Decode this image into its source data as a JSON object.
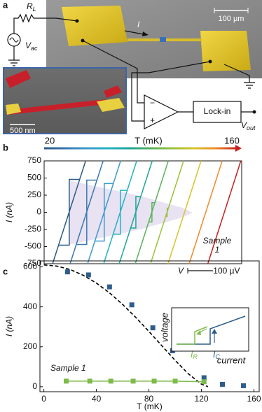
{
  "panel_a": {
    "label": "a",
    "r_l": {
      "base": "R",
      "sub": "L"
    },
    "v_ac": {
      "base": "V",
      "sub": "ac"
    },
    "current": "I",
    "scale_um": "100 µm",
    "scale_nm": "500 nm",
    "minus": "−",
    "plus": "+",
    "lockin": "Lock-in",
    "v_out": {
      "base": "V",
      "sub": "out"
    }
  },
  "chart_data": [
    {
      "type": "line",
      "panel_label": "b",
      "ylabel": "I (nA)",
      "ylim": [
        -750,
        750
      ],
      "yticks": [
        -750,
        -500,
        -250,
        0,
        250,
        500,
        750
      ],
      "xlim": [
        0,
        700
      ],
      "xlabel": "V",
      "scalebar": {
        "value": 100,
        "label": "100 µV"
      },
      "colorbar": {
        "label": "T (mK)",
        "min": 20,
        "max": 160
      },
      "annotation": [
        "Sample",
        "1"
      ],
      "series": [
        {
          "color": "#2c5a86",
          "x": [
            30,
            147,
            null,
            51,
            89,
            89,
            126
          ],
          "values": [
            -750,
            750,
            null,
            -480,
            -480,
            480,
            480
          ]
        },
        {
          "color": "#3a78b0",
          "x": [
            92,
            209,
            null,
            114,
            151,
            151,
            187
          ],
          "values": [
            -750,
            750,
            null,
            -470,
            -470,
            470,
            470
          ]
        },
        {
          "color": "#3f9bd0",
          "x": [
            154,
            271,
            null,
            180,
            213,
            213,
            245
          ],
          "values": [
            -750,
            750,
            null,
            -420,
            -420,
            420,
            420
          ]
        },
        {
          "color": "#24b2c4",
          "x": [
            211,
            328,
            null,
            245,
            270,
            270,
            294
          ],
          "values": [
            -750,
            750,
            null,
            -320,
            -320,
            320,
            320
          ]
        },
        {
          "color": "#1fa596",
          "x": [
            266,
            383,
            null,
            307,
            325,
            325,
            342
          ],
          "values": [
            -750,
            750,
            null,
            -230,
            -230,
            230,
            230
          ]
        },
        {
          "color": "#5ab25a",
          "x": [
            323,
            440,
            null,
            371,
            382,
            382,
            392
          ],
          "values": [
            -750,
            750,
            null,
            -140,
            -140,
            140,
            140
          ]
        },
        {
          "color": "#9cc23c",
          "x": [
            377,
            494,
            null,
            431,
            436,
            436,
            440
          ],
          "values": [
            -750,
            750,
            null,
            -60,
            -60,
            60,
            60
          ]
        },
        {
          "color": "#d8c42a",
          "x": [
            439,
            556
          ],
          "values": [
            -750,
            750
          ]
        },
        {
          "color": "#f08a28",
          "x": [
            514,
            631
          ],
          "values": [
            -750,
            750
          ]
        },
        {
          "color": "#c8201e",
          "x": [
            580,
            697
          ],
          "values": [
            -750,
            750
          ]
        }
      ]
    },
    {
      "type": "line",
      "panel_label": "c",
      "ylabel": "I (nA)",
      "xlabel": "T (mK)",
      "ylim": [
        -25,
        630
      ],
      "yticks": [
        0,
        200,
        400,
        600
      ],
      "xlim": [
        -3,
        164
      ],
      "xticks": [
        0,
        40,
        80,
        120,
        160
      ],
      "annotation": [
        "Sample 1"
      ],
      "series": [
        {
          "color": "#000000",
          "dashed": true,
          "marker": false,
          "line": true,
          "x": [
            0,
            10,
            20,
            30,
            40,
            50,
            60,
            70,
            80,
            90,
            100,
            110,
            120,
            125
          ],
          "values": [
            610,
            604,
            587,
            558,
            519,
            470,
            412,
            347,
            277,
            204,
            132,
            65,
            13,
            0
          ]
        },
        {
          "color": "#2f5d8c",
          "marker": true,
          "line": false,
          "x": [
            18,
            34,
            50,
            67,
            83,
            98,
            122,
            136,
            152
          ],
          "values": [
            575,
            560,
            500,
            410,
            295,
            180,
            45,
            12,
            5
          ]
        },
        {
          "color": "#7dbb4a",
          "marker": true,
          "line": true,
          "x": [
            17,
            35,
            51,
            68,
            84,
            100,
            122
          ],
          "values": [
            28,
            28,
            28,
            28,
            28,
            28,
            25
          ]
        }
      ],
      "inset": {
        "ylabel": "voltage",
        "xlabel": "current",
        "i_r": {
          "base": "I",
          "sub": "R"
        },
        "i_c": {
          "base": "I",
          "sub": "C"
        }
      }
    }
  ]
}
